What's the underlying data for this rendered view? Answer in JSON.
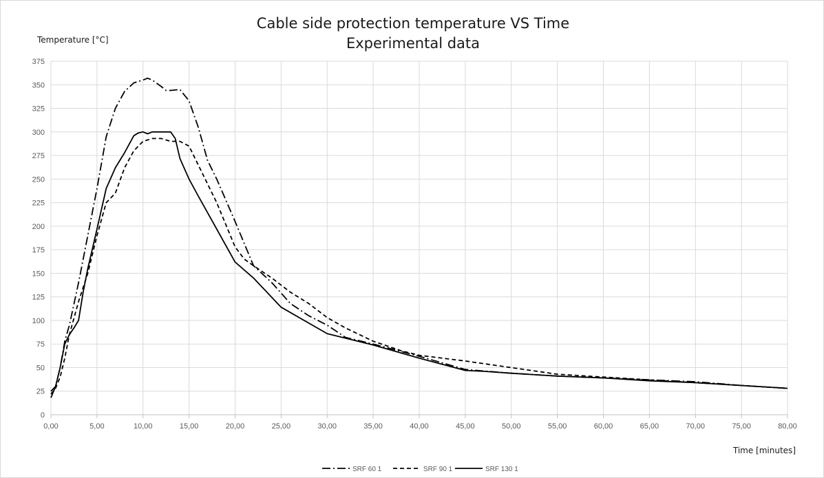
{
  "chart_data": {
    "type": "line",
    "title": "Cable side protection temperature VS Time",
    "subtitle": "Experimental data",
    "xlabel": "Time  [minutes]",
    "ylabel": "Temperature  [°C]",
    "xlim": [
      0,
      80
    ],
    "ylim": [
      0,
      375
    ],
    "x_ticks": [
      "0,00",
      "5,00",
      "10,00",
      "15,00",
      "20,00",
      "25,00",
      "30,00",
      "35,00",
      "40,00",
      "45,00",
      "50,00",
      "55,00",
      "60,00",
      "65,00",
      "70,00",
      "75,00",
      "80,00"
    ],
    "y_ticks": [
      "0",
      "25",
      "50",
      "75",
      "100",
      "125",
      "150",
      "175",
      "200",
      "225",
      "250",
      "275",
      "300",
      "325",
      "350",
      "375"
    ],
    "grid": true,
    "legend_position": "bottom",
    "series": [
      {
        "name": "SRF 60 1",
        "dash": "dash-dot",
        "color": "#000000",
        "x": [
          0,
          0.5,
          1,
          1.5,
          2,
          3,
          4,
          5,
          6,
          7,
          8,
          9,
          10,
          10.5,
          11,
          12,
          12.5,
          13,
          14,
          15,
          16,
          17,
          18,
          20,
          22,
          24,
          26,
          28,
          30,
          32,
          35,
          40,
          45,
          50,
          55,
          60,
          65,
          70,
          75,
          80
        ],
        "values": [
          25,
          30,
          50,
          78,
          95,
          140,
          190,
          240,
          295,
          325,
          343,
          352,
          355,
          357,
          355,
          348,
          344,
          344,
          345,
          333,
          305,
          270,
          250,
          205,
          158,
          140,
          118,
          105,
          95,
          82,
          75,
          62,
          48,
          44,
          41,
          39,
          37,
          35,
          31,
          28
        ]
      },
      {
        "name": "SRF 90 1",
        "dash": "dashed",
        "color": "#000000",
        "x": [
          0,
          0.5,
          1,
          1.5,
          2,
          3,
          4,
          5,
          6,
          7,
          8,
          9,
          10,
          11,
          12,
          13,
          14,
          15,
          16,
          18,
          20,
          21,
          22,
          24,
          26,
          28,
          30,
          32,
          35,
          38,
          40,
          45,
          50,
          55,
          60,
          65,
          70,
          75,
          80
        ],
        "values": [
          22,
          28,
          40,
          60,
          85,
          120,
          150,
          190,
          225,
          235,
          262,
          280,
          290,
          293,
          293,
          290,
          290,
          285,
          265,
          225,
          178,
          165,
          158,
          145,
          130,
          118,
          103,
          92,
          78,
          68,
          63,
          57,
          50,
          43,
          40,
          37,
          34,
          31,
          28
        ]
      },
      {
        "name": "SRF 130 1",
        "dash": "solid",
        "color": "#000000",
        "x": [
          0,
          0.5,
          1,
          1.5,
          2,
          2.5,
          3,
          3.5,
          4,
          5,
          6,
          7,
          8,
          8.5,
          9,
          9.5,
          10,
          10.5,
          11,
          12,
          13,
          13.5,
          14,
          15,
          16,
          18,
          20,
          22,
          25,
          30,
          35,
          40,
          45,
          47,
          50,
          55,
          60,
          65,
          70,
          75,
          80
        ],
        "values": [
          18,
          30,
          50,
          75,
          85,
          92,
          100,
          130,
          155,
          197,
          240,
          262,
          278,
          287,
          296,
          299,
          300,
          298,
          300,
          300,
          300,
          293,
          272,
          250,
          232,
          197,
          162,
          145,
          114,
          86,
          74,
          60,
          47,
          46,
          44,
          41,
          39,
          36,
          34,
          31,
          28
        ]
      }
    ]
  }
}
